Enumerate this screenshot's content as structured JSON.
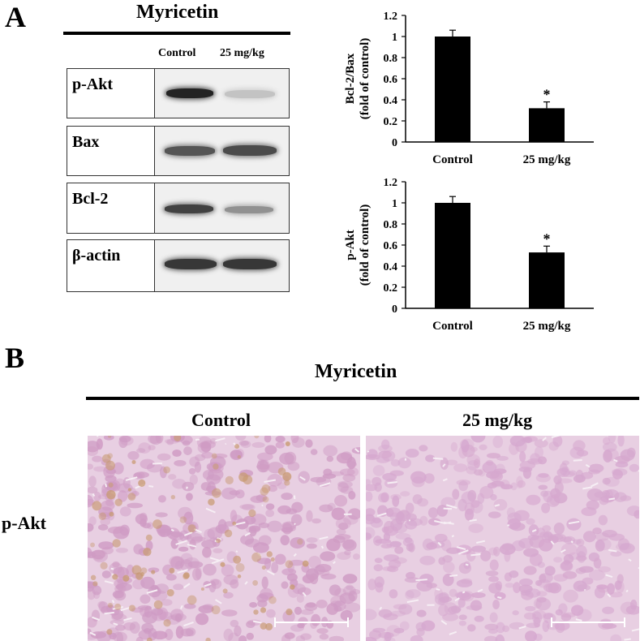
{
  "panel_a": {
    "letter": "A",
    "title": "Myricetin",
    "lanes": [
      "Control",
      "25 mg/kg"
    ],
    "blots": [
      {
        "label": "p-Akt",
        "intensity": [
          0.95,
          0.15
        ]
      },
      {
        "label": "Bax",
        "intensity": [
          0.7,
          0.75
        ]
      },
      {
        "label": "Bcl-2",
        "intensity": [
          0.8,
          0.4
        ]
      },
      {
        "label": "β-actin",
        "intensity": [
          0.85,
          0.85
        ]
      }
    ]
  },
  "chart_data": [
    {
      "type": "bar",
      "categories": [
        "Control",
        "25 mg/kg"
      ],
      "values": [
        1.0,
        0.32
      ],
      "errors": [
        0.06,
        0.06
      ],
      "significance": [
        "",
        "*"
      ],
      "ylabel_line1": "Bcl-2/Bax",
      "ylabel_line2": "(fold of control)",
      "ylim": [
        0,
        1.2
      ],
      "yticks": [
        "0",
        "0.2",
        "0.4",
        "0.6",
        "0.8",
        "1",
        "1.2"
      ],
      "bar_color": "#000000"
    },
    {
      "type": "bar",
      "categories": [
        "Control",
        "25 mg/kg"
      ],
      "values": [
        1.0,
        0.53
      ],
      "errors": [
        0.06,
        0.06
      ],
      "significance": [
        "",
        "*"
      ],
      "ylabel_line1": "p-Akt",
      "ylabel_line2": "(fold of control)",
      "ylim": [
        0,
        1.2
      ],
      "yticks": [
        "0",
        "0.2",
        "0.4",
        "0.6",
        "0.8",
        "1",
        "1.2"
      ],
      "bar_color": "#000000"
    }
  ],
  "panel_b": {
    "letter": "B",
    "title": "Myricetin",
    "columns": [
      "Control",
      "25 mg/kg"
    ],
    "row_label": "p-Akt",
    "stain_colors": [
      "#cf9bc4",
      "#d6a8cf"
    ]
  }
}
